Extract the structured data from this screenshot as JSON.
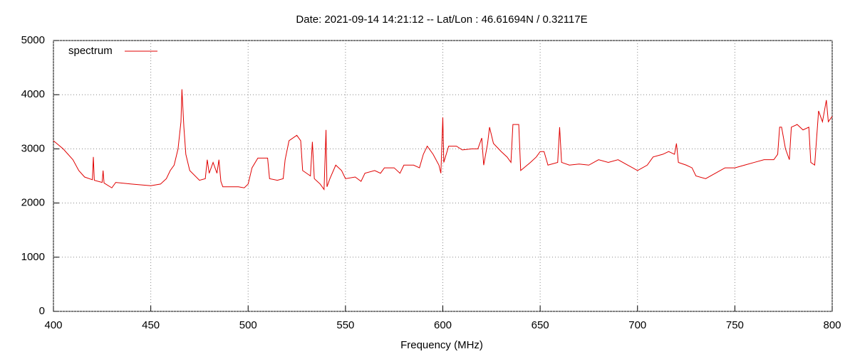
{
  "chart_data": {
    "type": "line",
    "title": "Date: 2021-09-14 14:21:12  --  Lat/Lon : 46.61694N / 0.32117E",
    "x_label": "Frequency (MHz)",
    "x": [
      400,
      405,
      410,
      413,
      416,
      420,
      420.5,
      421,
      425,
      425.5,
      426,
      430,
      432,
      440,
      450,
      455,
      458,
      460,
      462,
      464,
      465.5,
      466,
      467,
      468,
      470,
      475,
      478,
      479,
      480,
      482,
      484,
      485,
      486,
      487,
      495,
      498,
      500,
      502,
      505,
      510,
      511,
      515,
      518,
      519,
      521,
      525,
      527,
      528,
      532,
      533,
      534,
      537,
      539,
      540,
      540.5,
      542,
      545,
      548,
      550,
      555,
      558,
      560,
      565,
      568,
      570,
      575,
      578,
      580,
      585,
      588,
      590,
      592,
      595,
      598,
      599,
      600,
      600.5,
      603,
      607,
      610,
      615,
      618,
      620,
      621,
      623,
      624,
      626,
      630,
      633,
      635,
      636,
      639,
      640,
      645,
      648,
      650,
      652,
      654,
      659,
      660,
      661,
      665,
      670,
      675,
      680,
      685,
      690,
      695,
      700,
      705,
      708,
      713,
      716,
      719,
      720,
      721,
      725,
      728,
      730,
      735,
      740,
      745,
      750,
      755,
      760,
      765,
      770,
      772,
      773,
      774,
      776,
      778,
      779,
      782,
      785,
      788,
      789,
      791,
      792,
      793,
      795,
      797,
      798,
      800
    ],
    "series": [
      {
        "name": "spectrum",
        "color": "#e00000",
        "values": [
          3150,
          3000,
          2800,
          2600,
          2480,
          2430,
          2850,
          2420,
          2380,
          2600,
          2370,
          2280,
          2380,
          2350,
          2320,
          2350,
          2450,
          2600,
          2700,
          3000,
          3500,
          4100,
          3400,
          2900,
          2600,
          2420,
          2450,
          2800,
          2550,
          2750,
          2550,
          2800,
          2400,
          2300,
          2300,
          2280,
          2350,
          2650,
          2830,
          2830,
          2450,
          2420,
          2450,
          2800,
          3150,
          3250,
          3150,
          2600,
          2500,
          3130,
          2450,
          2350,
          2250,
          3350,
          2300,
          2450,
          2700,
          2600,
          2450,
          2480,
          2400,
          2550,
          2600,
          2550,
          2650,
          2650,
          2550,
          2700,
          2700,
          2650,
          2900,
          3050,
          2900,
          2700,
          2550,
          3580,
          2750,
          3050,
          3050,
          2980,
          3000,
          3000,
          3200,
          2700,
          3100,
          3400,
          3100,
          2950,
          2850,
          2750,
          3450,
          3450,
          2600,
          2750,
          2850,
          2950,
          2950,
          2700,
          2750,
          3400,
          2750,
          2700,
          2720,
          2700,
          2800,
          2750,
          2800,
          2700,
          2600,
          2700,
          2850,
          2900,
          2950,
          2900,
          3100,
          2750,
          2700,
          2650,
          2500,
          2450,
          2550,
          2650,
          2650,
          2700,
          2750,
          2800,
          2800,
          2900,
          3400,
          3400,
          3000,
          2800,
          3400,
          3450,
          3350,
          3400,
          2750,
          2700,
          3200,
          3700,
          3500,
          3900,
          3500,
          3600
        ]
      }
    ],
    "xlim": [
      400,
      800
    ],
    "xticks": [
      400,
      450,
      500,
      550,
      600,
      650,
      700,
      750,
      800
    ],
    "ylim": [
      0,
      5000
    ],
    "yticks": [
      0,
      1000,
      2000,
      3000,
      4000,
      5000
    ],
    "grid": true,
    "legend": "top-left"
  }
}
